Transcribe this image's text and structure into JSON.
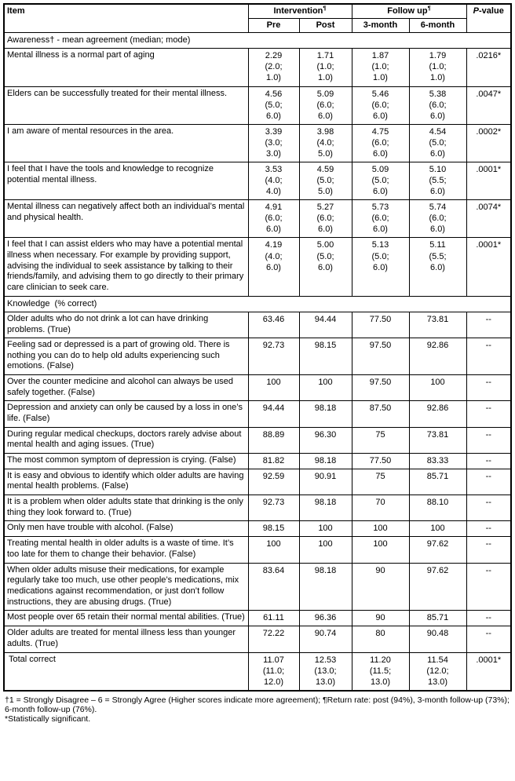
{
  "header": {
    "item": "Item",
    "intervention": "Intervention",
    "followup": "Follow up",
    "return_rate_mark": "¶",
    "pvalue_italic": "P",
    "pvalue_suffix": "-value",
    "subcols": {
      "pre": "Pre",
      "post": "Post",
      "m3": "3-month",
      "m6": "6-month"
    }
  },
  "sections": [
    {
      "title": "Awareness† - mean agreement (median; mode)",
      "rows": [
        {
          "item": "Mental illness is a normal part of aging",
          "pre": "2.29\n(2.0;\n1.0)",
          "post": "1.71\n(1.0;\n1.0)",
          "m3": "1.87\n(1.0;\n1.0)",
          "m6": "1.79\n(1.0;\n1.0)",
          "p": ".0216*"
        },
        {
          "item": "Elders can be successfully treated for their mental illness.",
          "pre": "4.56\n(5.0;\n6.0)",
          "post": "5.09\n(6.0;\n6.0)",
          "m3": "5.46\n(6.0;\n6.0)",
          "m6": "5.38\n(6.0;\n6.0)",
          "p": ".0047*"
        },
        {
          "item": "I am aware of mental resources in the area.",
          "pre": "3.39\n(3.0;\n3.0)",
          "post": "3.98\n(4.0;\n5.0)",
          "m3": "4.75\n(6.0;\n6.0)",
          "m6": "4.54\n(5.0;\n6.0)",
          "p": ".0002*"
        },
        {
          "item": "I feel that I have the tools and knowledge to recognize potential mental illness.",
          "pre": "3.53\n(4.0;\n4.0)",
          "post": "4.59\n(5.0;\n5.0)",
          "m3": "5.09\n(5.0;\n6.0)",
          "m6": "5.10\n(5.5;\n6.0)",
          "p": ".0001*"
        },
        {
          "item": "Mental illness can negatively affect both an individual’s mental and physical health.",
          "pre": "4.91\n(6.0;\n6.0)",
          "post": "5.27\n(6.0;\n6.0)",
          "m3": "5.73\n(6.0;\n6.0)",
          "m6": "5.74\n(6.0;\n6.0)",
          "p": ".0074*"
        },
        {
          "item": "I feel that I can assist elders who may have a potential mental illness when necessary. For example by providing support, advising the individual to seek assistance by talking to their friends/family, and advising them to go directly to their primary care clinician to seek care.",
          "pre": "4.19\n(4.0;\n6.0)",
          "post": "5.00\n(5.0;\n6.0)",
          "m3": "5.13\n(5.0;\n6.0)",
          "m6": "5.11\n(5.5;\n6.0)",
          "p": ".0001*"
        }
      ]
    },
    {
      "title": "Knowledge  (% correct)",
      "rows": [
        {
          "item": "Older adults who do not drink a lot can have drinking problems. (True)",
          "pre": "63.46",
          "post": "94.44",
          "m3": "77.50",
          "m6": "73.81",
          "p": "--"
        },
        {
          "item": "Feeling sad or depressed is a part of growing old. There is nothing you can do to help old adults experiencing such emotions. (False)",
          "pre": "92.73",
          "post": "98.15",
          "m3": "97.50",
          "m6": "92.86",
          "p": "--"
        },
        {
          "item": "Over the counter medicine and alcohol can always be used safely together. (False)",
          "pre": "100",
          "post": "100",
          "m3": "97.50",
          "m6": "100",
          "p": "--"
        },
        {
          "item": "Depression and anxiety can only be caused by a loss in one’s life. (False)",
          "pre": "94.44",
          "post": "98.18",
          "m3": "87.50",
          "m6": "92.86",
          "p": "--"
        },
        {
          "item": "During regular medical checkups, doctors rarely advise about mental health and aging issues. (True)",
          "pre": "88.89",
          "post": "96.30",
          "m3": "75",
          "m6": "73.81",
          "p": "--"
        },
        {
          "item": "The most common symptom of depression is crying. (False)",
          "pre": "81.82",
          "post": "98.18",
          "m3": "77.50",
          "m6": "83.33",
          "p": "--"
        },
        {
          "item": "It is easy and obvious to identify which older adults are having mental health problems. (False)",
          "pre": "92.59",
          "post": "90.91",
          "m3": "75",
          "m6": "85.71",
          "p": "--"
        },
        {
          "item": "It is a problem when older adults state that drinking is the only thing they look forward to. (True)",
          "pre": "92.73",
          "post": "98.18",
          "m3": "70",
          "m6": "88.10",
          "p": "--"
        },
        {
          "item": "Only men have trouble with alcohol. (False)",
          "pre": "98.15",
          "post": "100",
          "m3": "100",
          "m6": "100",
          "p": "--"
        },
        {
          "item": "Treating mental health in older adults is a waste of time. It’s too late for them to change their behavior. (False)",
          "pre": "100",
          "post": "100",
          "m3": "100",
          "m6": "97.62",
          "p": "--"
        },
        {
          "item": "When older adults misuse their medications, for example regularly take too much, use other people’s medications, mix medications against recommendation, or just don’t follow instructions, they are abusing drugs. (True)",
          "pre": "83.64",
          "post": "98.18",
          "m3": "90",
          "m6": "97.62",
          "p": "--"
        },
        {
          "item": "Most people over 65 retain their normal mental abilities. (True)",
          "pre": "61.11",
          "post": "96.36",
          "m3": "90",
          "m6": "85.71",
          "p": "--"
        },
        {
          "item": "Older adults are treated for mental illness less than younger adults. (True)",
          "pre": "72.22",
          "post": "90.74",
          "m3": "80",
          "m6": "90.48",
          "p": "--"
        }
      ]
    }
  ],
  "total_row": {
    "item": "Total correct",
    "pre": "11.07\n(11.0;\n12.0)",
    "post": "12.53\n(13.0;\n13.0)",
    "m3": "11.20\n(11.5;\n13.0)",
    "m6": "11.54\n(12.0;\n13.0)",
    "p": ".0001*"
  },
  "footnotes": {
    "line1": "†1 = Strongly Disagree – 6 = Strongly Agree (Higher scores indicate more agreement);  ¶Return rate: post (94%), 3-month follow-up (73%); 6-month follow-up (76%).",
    "line2": "*Statistically significant."
  },
  "colors": {
    "text": "#000000",
    "border": "#000000",
    "background": "#ffffff"
  }
}
